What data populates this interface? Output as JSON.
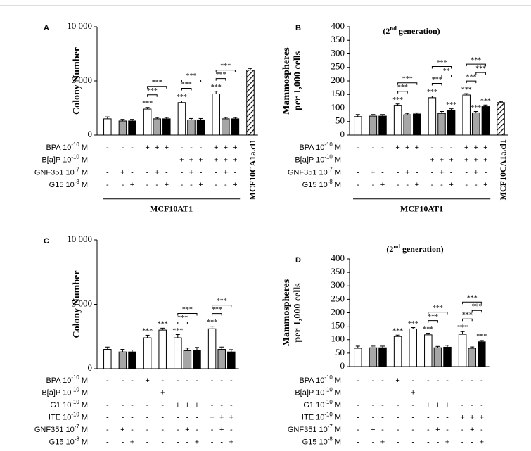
{
  "chart_data": [
    {
      "type": "bar",
      "panel": "A",
      "ylabel": [
        "Colony Number"
      ],
      "values": [
        1500,
        1300,
        1300,
        2400,
        1500,
        1500,
        3000,
        1400,
        1400,
        3800,
        1500,
        1500,
        6000
      ],
      "errors": [
        180,
        150,
        150,
        150,
        120,
        120,
        150,
        130,
        130,
        250,
        120,
        120,
        150
      ],
      "colors": [
        "#ffffff",
        "#a6a6a6",
        "#000000",
        "#ffffff",
        "#a6a6a6",
        "#000000",
        "#ffffff",
        "#a6a6a6",
        "#000000",
        "#ffffff",
        "#a6a6a6",
        "#000000",
        "#ffffff"
      ],
      "hatch": [
        12
      ],
      "ylim": [
        0,
        10000
      ],
      "yticks": [
        0,
        {
          "value": 5000,
          "label": "5 000"
        },
        {
          "value": 10000,
          "label": "10 000"
        }
      ],
      "stars": [
        null,
        null,
        null,
        "***",
        null,
        null,
        "***",
        null,
        null,
        "***",
        null,
        null,
        null
      ],
      "brackets": [
        {
          "bars": [
            3,
            4
          ],
          "label": "***"
        },
        {
          "bars": [
            3,
            5
          ],
          "label": "***"
        },
        {
          "bars": [
            6,
            7
          ],
          "label": "***"
        },
        {
          "bars": [
            6,
            8
          ],
          "label": "***"
        },
        {
          "bars": [
            9,
            10
          ],
          "label": "***"
        },
        {
          "bars": [
            9,
            11
          ],
          "label": "***"
        }
      ],
      "rows": [
        {
          "label": {
            "pre": "BPA 10",
            "sup": "-10",
            "post": " M"
          },
          "marks": [
            "-",
            "-",
            "-",
            "+",
            "+",
            "+",
            "-",
            "-",
            "-",
            "+",
            "+",
            "+"
          ]
        },
        {
          "label": {
            "pre": "B[a]P 10",
            "sup": "-10",
            "post": " M"
          },
          "marks": [
            "-",
            "-",
            "-",
            "-",
            "-",
            "-",
            "+",
            "+",
            "+",
            "+",
            "+",
            "+"
          ]
        },
        {
          "label": {
            "pre": "GNF351 10",
            "sup": "-7",
            "post": " M"
          },
          "marks": [
            "-",
            "+",
            "-",
            "-",
            "+",
            "-",
            "-",
            "+",
            "-",
            "-",
            "+",
            "-"
          ]
        },
        {
          "label": {
            "pre": "G15 10",
            "sup": "-8",
            "post": " M"
          },
          "marks": [
            "-",
            "-",
            "+",
            "-",
            "-",
            "+",
            "-",
            "-",
            "+",
            "-",
            "-",
            "+"
          ]
        }
      ],
      "group_label": "MCF10AT1",
      "hatch_label": "MCF10CA1a.cl1"
    },
    {
      "type": "bar",
      "panel": "B",
      "ylabel": [
        "Mammospheres",
        "per 1,000 cells"
      ],
      "subtitle": {
        "pre": "(2",
        "sup": "nd",
        "post": " generation)"
      },
      "values": [
        68,
        70,
        70,
        110,
        75,
        78,
        138,
        80,
        92,
        148,
        82,
        105,
        120
      ],
      "errors": [
        8,
        6,
        6,
        5,
        5,
        4,
        6,
        7,
        5,
        5,
        5,
        6,
        4
      ],
      "colors": [
        "#ffffff",
        "#a6a6a6",
        "#000000",
        "#ffffff",
        "#a6a6a6",
        "#000000",
        "#ffffff",
        "#a6a6a6",
        "#000000",
        "#ffffff",
        "#a6a6a6",
        "#000000",
        "#ffffff"
      ],
      "hatch": [
        12
      ],
      "ylim": [
        0,
        400
      ],
      "yticks": [
        0,
        50,
        100,
        150,
        200,
        250,
        300,
        350,
        400
      ],
      "stars": [
        null,
        null,
        null,
        "***",
        null,
        null,
        "***",
        null,
        "***",
        "***",
        "***",
        "***",
        null
      ],
      "brackets": [
        {
          "bars": [
            3,
            4
          ],
          "label": "***"
        },
        {
          "bars": [
            3,
            5
          ],
          "label": "***"
        },
        {
          "bars": [
            6,
            7
          ],
          "label": "***"
        },
        {
          "bars": [
            7,
            8
          ],
          "label": "**"
        },
        {
          "bars": [
            6,
            8
          ],
          "label": "***"
        },
        {
          "bars": [
            9,
            10
          ],
          "label": "***"
        },
        {
          "bars": [
            10,
            11
          ],
          "label": "***"
        },
        {
          "bars": [
            9,
            11
          ],
          "label": "***"
        }
      ],
      "rows": [
        {
          "label": {
            "pre": "BPA 10",
            "sup": "-10",
            "post": " M"
          },
          "marks": [
            "-",
            "-",
            "-",
            "+",
            "+",
            "+",
            "-",
            "-",
            "-",
            "+",
            "+",
            "+"
          ]
        },
        {
          "label": {
            "pre": "B[a]P 10",
            "sup": "-10",
            "post": " M"
          },
          "marks": [
            "-",
            "-",
            "-",
            "-",
            "-",
            "-",
            "+",
            "+",
            "+",
            "+",
            "+",
            "+"
          ]
        },
        {
          "label": {
            "pre": "GNF351 10",
            "sup": "-7",
            "post": " M"
          },
          "marks": [
            "-",
            "+",
            "-",
            "-",
            "+",
            "-",
            "-",
            "+",
            "-",
            "-",
            "+",
            "-"
          ]
        },
        {
          "label": {
            "pre": "G15 10",
            "sup": "-8",
            "post": " M"
          },
          "marks": [
            "-",
            "-",
            "+",
            "-",
            "-",
            "+",
            "-",
            "-",
            "+",
            "-",
            "-",
            "+"
          ]
        }
      ],
      "group_label": "MCF10AT1",
      "hatch_label": "MCF10CA1a.cl1"
    },
    {
      "type": "bar",
      "panel": "C",
      "ylabel": [
        "Colony Number"
      ],
      "values": [
        1500,
        1300,
        1300,
        2400,
        3000,
        2400,
        1400,
        1400,
        3100,
        1500,
        1300
      ],
      "errors": [
        180,
        200,
        150,
        200,
        150,
        250,
        200,
        250,
        200,
        180,
        180
      ],
      "colors": [
        "#ffffff",
        "#a6a6a6",
        "#000000",
        "#ffffff",
        "#ffffff",
        "#ffffff",
        "#a6a6a6",
        "#000000",
        "#ffffff",
        "#a6a6a6",
        "#000000"
      ],
      "hatch": [],
      "ylim": [
        0,
        10000
      ],
      "yticks": [
        0,
        {
          "value": 5000,
          "label": "5 000"
        },
        {
          "value": 10000,
          "label": "10 000"
        }
      ],
      "stars": [
        null,
        null,
        null,
        "***",
        "***",
        "***",
        null,
        null,
        "***",
        null,
        null
      ],
      "brackets": [
        {
          "bars": [
            5,
            6
          ],
          "label": "***"
        },
        {
          "bars": [
            5,
            7
          ],
          "label": "***"
        },
        {
          "bars": [
            8,
            9
          ],
          "label": "***"
        },
        {
          "bars": [
            8,
            10
          ],
          "label": "***"
        }
      ],
      "rows": [
        {
          "label": {
            "pre": "BPA 10",
            "sup": "-10",
            "post": " M"
          },
          "marks": [
            "-",
            "-",
            "-",
            "+",
            "-",
            "-",
            "-",
            "-",
            "-",
            "-",
            "-"
          ]
        },
        {
          "label": {
            "pre": "B[a]P 10",
            "sup": "-10",
            "post": " M"
          },
          "marks": [
            "-",
            "-",
            "-",
            "-",
            "+",
            "-",
            "-",
            "-",
            "-",
            "-",
            "-"
          ]
        },
        {
          "label": {
            "pre": "G1 10",
            "sup": "-10",
            "post": " M"
          },
          "marks": [
            "-",
            "-",
            "-",
            "-",
            "-",
            "+",
            "+",
            "+",
            "-",
            "-",
            "-"
          ]
        },
        {
          "label": {
            "pre": "ITE 10",
            "sup": "-10",
            "post": " M"
          },
          "marks": [
            "-",
            "-",
            "-",
            "-",
            "-",
            "-",
            "-",
            "-",
            "+",
            "+",
            "+"
          ]
        },
        {
          "label": {
            "pre": "GNF351 10",
            "sup": "-7",
            "post": " M"
          },
          "marks": [
            "-",
            "+",
            "-",
            "-",
            "-",
            "-",
            "+",
            "-",
            "-",
            "+",
            "-"
          ]
        },
        {
          "label": {
            "pre": "G15 10",
            "sup": "-8",
            "post": " M"
          },
          "marks": [
            "-",
            "-",
            "+",
            "-",
            "-",
            "-",
            "-",
            "+",
            "-",
            "-",
            "+"
          ]
        }
      ]
    },
    {
      "type": "bar",
      "panel": "D",
      "ylabel": [
        "Mammospheres",
        "per 1,000 cells"
      ],
      "subtitle": {
        "pre": "(2",
        "sup": "nd",
        "post": " generation)"
      },
      "values": [
        68,
        70,
        70,
        112,
        140,
        118,
        70,
        72,
        120,
        68,
        92
      ],
      "errors": [
        8,
        6,
        6,
        5,
        5,
        6,
        5,
        7,
        10,
        5,
        5
      ],
      "colors": [
        "#ffffff",
        "#a6a6a6",
        "#000000",
        "#ffffff",
        "#ffffff",
        "#ffffff",
        "#a6a6a6",
        "#000000",
        "#ffffff",
        "#a6a6a6",
        "#000000"
      ],
      "hatch": [],
      "ylim": [
        0,
        400
      ],
      "yticks": [
        0,
        50,
        100,
        150,
        200,
        250,
        300,
        350,
        400
      ],
      "stars": [
        null,
        null,
        null,
        "***",
        "***",
        "***",
        null,
        null,
        "***",
        null,
        "***"
      ],
      "brackets": [
        {
          "bars": [
            5,
            6
          ],
          "label": "***"
        },
        {
          "bars": [
            5,
            7
          ],
          "label": "***"
        },
        {
          "bars": [
            8,
            9
          ],
          "label": "***"
        },
        {
          "bars": [
            9,
            10
          ],
          "label": "***"
        },
        {
          "bars": [
            8,
            10
          ],
          "label": "***"
        }
      ],
      "rows": [
        {
          "label": {
            "pre": "BPA 10",
            "sup": "-10",
            "post": " M"
          },
          "marks": [
            "-",
            "-",
            "-",
            "+",
            "-",
            "-",
            "-",
            "-",
            "-",
            "-",
            "-"
          ]
        },
        {
          "label": {
            "pre": "B[a]P 10",
            "sup": "-10",
            "post": " M"
          },
          "marks": [
            "-",
            "-",
            "-",
            "-",
            "+",
            "-",
            "-",
            "-",
            "-",
            "-",
            "-"
          ]
        },
        {
          "label": {
            "pre": "G1 10",
            "sup": "-10",
            "post": " M"
          },
          "marks": [
            "-",
            "-",
            "-",
            "-",
            "-",
            "+",
            "+",
            "+",
            "-",
            "-",
            "-"
          ]
        },
        {
          "label": {
            "pre": "ITE 10",
            "sup": "-10",
            "post": " M"
          },
          "marks": [
            "-",
            "-",
            "-",
            "-",
            "-",
            "-",
            "-",
            "-",
            "+",
            "+",
            "+"
          ]
        },
        {
          "label": {
            "pre": "GNF351 10",
            "sup": "-7",
            "post": " M"
          },
          "marks": [
            "-",
            "+",
            "-",
            "-",
            "-",
            "-",
            "+",
            "-",
            "-",
            "+",
            "-"
          ]
        },
        {
          "label": {
            "pre": "G15 10",
            "sup": "-8",
            "post": " M"
          },
          "marks": [
            "-",
            "-",
            "+",
            "-",
            "-",
            "-",
            "-",
            "+",
            "-",
            "-",
            "+"
          ]
        }
      ]
    }
  ]
}
